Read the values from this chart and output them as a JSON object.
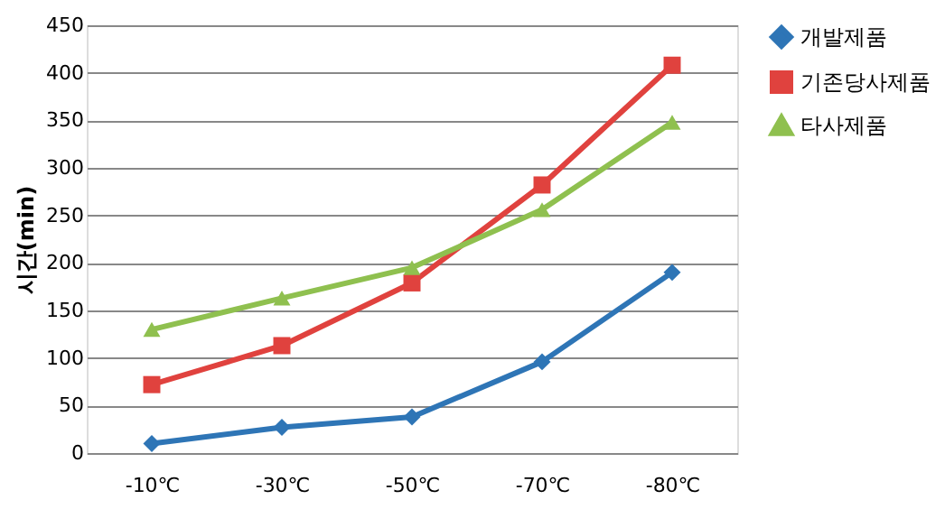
{
  "chart_data": {
    "type": "line",
    "ylabel": "시간(min)",
    "categories": [
      "-10℃",
      "-30℃",
      "-50℃",
      "-70℃",
      "-80℃"
    ],
    "series": [
      {
        "name": "개발제품",
        "color": "#2e75b6",
        "marker": "diamond",
        "values": [
          10,
          27,
          38,
          96,
          190
        ]
      },
      {
        "name": "기존당사제품",
        "color": "#e0423e",
        "marker": "square",
        "values": [
          72,
          113,
          179,
          282,
          408
        ]
      },
      {
        "name": "타사제품",
        "color": "#8fc04f",
        "marker": "triangle",
        "values": [
          130,
          163,
          195,
          256,
          348
        ]
      }
    ],
    "ylim": [
      0,
      450
    ],
    "yticks": [
      0,
      50,
      100,
      150,
      200,
      250,
      300,
      350,
      400,
      450
    ],
    "grid": "y",
    "legend": "right",
    "line_style": "solid"
  }
}
